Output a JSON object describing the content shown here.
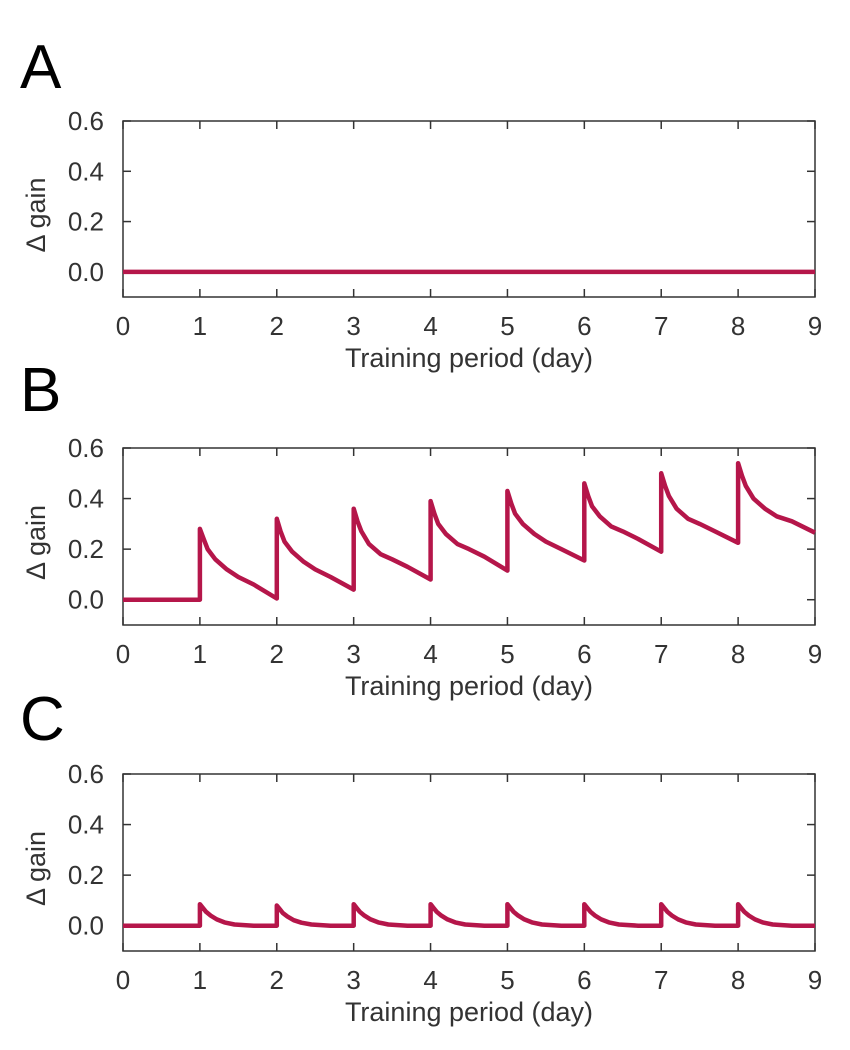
{
  "figure": {
    "line_color": "#b5164a",
    "axis_color": "#333333"
  },
  "chart_data": [
    {
      "panel": "A",
      "type": "line",
      "xlabel": "Training period (day)",
      "ylabel": "Δ gain",
      "xlim": [
        0,
        9
      ],
      "ylim": [
        -0.1,
        0.6
      ],
      "xticks": [
        "0",
        "1",
        "2",
        "3",
        "4",
        "5",
        "6",
        "7",
        "8",
        "9"
      ],
      "yticks": [
        "0.0",
        "0.2",
        "0.4",
        "0.6"
      ],
      "grid": false,
      "series": [
        {
          "x": [
            0,
            9
          ],
          "y": [
            0,
            0
          ]
        }
      ]
    },
    {
      "panel": "B",
      "type": "line",
      "xlabel": "Training period (day)",
      "ylabel": "Δ gain",
      "xlim": [
        0,
        9
      ],
      "ylim": [
        -0.1,
        0.6
      ],
      "xticks": [
        "0",
        "1",
        "2",
        "3",
        "4",
        "5",
        "6",
        "7",
        "8",
        "9"
      ],
      "yticks": [
        "0.0",
        "0.2",
        "0.4",
        "0.6"
      ],
      "grid": false,
      "series": [
        {
          "x": [
            0,
            1,
            1,
            1.05,
            1.1,
            1.2,
            1.35,
            1.5,
            1.7,
            2,
            2,
            2.05,
            2.1,
            2.2,
            2.35,
            2.5,
            2.7,
            3,
            3,
            3.05,
            3.1,
            3.2,
            3.35,
            3.5,
            3.7,
            4,
            4,
            4.05,
            4.1,
            4.2,
            4.35,
            4.5,
            4.7,
            5,
            5,
            5.05,
            5.1,
            5.2,
            5.35,
            5.5,
            5.7,
            6,
            6,
            6.05,
            6.1,
            6.2,
            6.35,
            6.5,
            6.7,
            7,
            7,
            7.05,
            7.1,
            7.2,
            7.35,
            7.5,
            7.7,
            8,
            8,
            8.05,
            8.1,
            8.2,
            8.35,
            8.5,
            8.7,
            9
          ],
          "y": [
            0,
            0,
            0.28,
            0.24,
            0.2,
            0.16,
            0.12,
            0.09,
            0.06,
            0.005,
            0.32,
            0.27,
            0.23,
            0.19,
            0.15,
            0.12,
            0.09,
            0.04,
            0.36,
            0.31,
            0.27,
            0.22,
            0.18,
            0.16,
            0.13,
            0.08,
            0.39,
            0.34,
            0.3,
            0.26,
            0.22,
            0.2,
            0.17,
            0.115,
            0.43,
            0.38,
            0.34,
            0.3,
            0.26,
            0.23,
            0.2,
            0.155,
            0.46,
            0.41,
            0.37,
            0.33,
            0.29,
            0.27,
            0.24,
            0.19,
            0.5,
            0.45,
            0.41,
            0.36,
            0.32,
            0.3,
            0.27,
            0.225,
            0.54,
            0.49,
            0.45,
            0.4,
            0.36,
            0.33,
            0.31,
            0.265
          ]
        }
      ]
    },
    {
      "panel": "C",
      "type": "line",
      "xlabel": "Training period (day)",
      "ylabel": "Δ gain",
      "xlim": [
        0,
        9
      ],
      "ylim": [
        -0.1,
        0.6
      ],
      "xticks": [
        "0",
        "1",
        "2",
        "3",
        "4",
        "5",
        "6",
        "7",
        "8",
        "9"
      ],
      "yticks": [
        "0.0",
        "0.2",
        "0.4",
        "0.6"
      ],
      "grid": false,
      "series": [
        {
          "x": [
            0,
            1,
            1,
            1.04,
            1.08,
            1.14,
            1.22,
            1.32,
            1.45,
            1.7,
            2,
            2,
            2.04,
            2.08,
            2.14,
            2.22,
            2.32,
            2.45,
            2.7,
            3,
            3,
            3.04,
            3.08,
            3.14,
            3.22,
            3.32,
            3.45,
            3.7,
            4,
            4,
            4.04,
            4.08,
            4.14,
            4.22,
            4.32,
            4.45,
            4.7,
            5,
            5,
            5.04,
            5.08,
            5.14,
            5.22,
            5.32,
            5.45,
            5.7,
            6,
            6,
            6.04,
            6.08,
            6.14,
            6.22,
            6.32,
            6.45,
            6.7,
            7,
            7,
            7.04,
            7.08,
            7.14,
            7.22,
            7.32,
            7.45,
            7.7,
            8,
            8,
            8.04,
            8.08,
            8.14,
            8.22,
            8.32,
            8.45,
            8.7,
            9
          ],
          "y": [
            0,
            0,
            0.085,
            0.07,
            0.055,
            0.04,
            0.025,
            0.013,
            0.005,
            0,
            0,
            0.08,
            0.065,
            0.05,
            0.036,
            0.022,
            0.012,
            0.005,
            0,
            0,
            0.085,
            0.07,
            0.055,
            0.04,
            0.025,
            0.013,
            0.005,
            0,
            0,
            0.085,
            0.07,
            0.055,
            0.04,
            0.025,
            0.013,
            0.005,
            0,
            0,
            0.085,
            0.07,
            0.055,
            0.04,
            0.025,
            0.013,
            0.005,
            0,
            0,
            0.085,
            0.07,
            0.055,
            0.04,
            0.025,
            0.013,
            0.005,
            0,
            0,
            0.085,
            0.07,
            0.055,
            0.04,
            0.025,
            0.013,
            0.005,
            0,
            0,
            0.085,
            0.07,
            0.055,
            0.04,
            0.025,
            0.013,
            0.005,
            0,
            0
          ]
        }
      ]
    }
  ]
}
